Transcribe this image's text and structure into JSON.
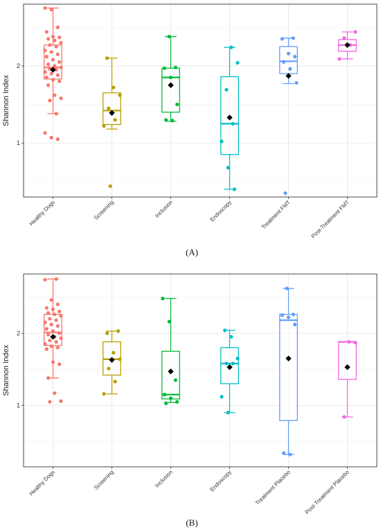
{
  "panels_labels": [
    "(A)",
    "(B)"
  ],
  "chart_data": [
    {
      "type": "box",
      "panel": "(A)",
      "ylabel": "Shannon Index",
      "xlabel": "",
      "title": "",
      "grid": true,
      "ylim": [
        0.3,
        2.8
      ],
      "yticks": [
        1,
        2
      ],
      "categories": [
        "Healthy Dogs",
        "Screening",
        "Inclusion",
        "Endoscopy",
        "Treatment FMT",
        "Post-Treatment FMT"
      ],
      "colors": [
        "#F8766D",
        "#B79F00",
        "#00BA38",
        "#00BFC4",
        "#619CFF",
        "#F564E3"
      ],
      "boxes": [
        {
          "min": 1.38,
          "q1": 1.83,
          "median": 1.98,
          "q3": 2.27,
          "max": 2.75,
          "mean": 1.95
        },
        {
          "min": 1.18,
          "q1": 1.24,
          "median": 1.42,
          "q3": 1.65,
          "max": 2.1,
          "mean": 1.39
        },
        {
          "min": 1.28,
          "q1": 1.4,
          "median": 1.85,
          "q3": 1.97,
          "max": 2.38,
          "mean": 1.75
        },
        {
          "min": 0.4,
          "q1": 0.85,
          "median": 1.25,
          "q3": 1.86,
          "max": 2.24,
          "mean": 1.33
        },
        {
          "min": 1.77,
          "q1": 1.9,
          "median": 2.06,
          "q3": 2.25,
          "max": 2.36,
          "mean": 1.87
        },
        {
          "min": 2.09,
          "q1": 2.19,
          "median": 2.27,
          "q3": 2.34,
          "max": 2.44,
          "mean": 2.27
        }
      ],
      "points": [
        [
          2.75,
          2.73,
          2.5,
          2.44,
          2.38,
          2.37,
          2.35,
          2.33,
          2.3,
          2.27,
          2.25,
          2.2,
          2.18,
          2.15,
          2.12,
          2.08,
          2.05,
          2.02,
          2.0,
          1.98,
          1.96,
          1.95,
          1.92,
          1.9,
          1.88,
          1.85,
          1.82,
          1.8,
          1.75,
          1.62,
          1.58,
          1.55,
          1.38,
          1.13,
          1.07,
          1.05
        ],
        [
          2.1,
          1.72,
          1.62,
          1.45,
          1.3,
          1.22,
          0.44
        ],
        [
          2.38,
          1.98,
          1.97,
          1.85,
          1.5,
          1.3,
          1.29
        ],
        [
          2.24,
          2.04,
          1.69,
          1.25,
          1.02,
          0.68,
          0.4
        ],
        [
          2.36,
          2.35,
          2.16,
          2.12,
          2.05,
          1.96,
          1.78,
          0.35
        ],
        [
          2.44,
          2.36,
          2.27,
          2.09
        ]
      ]
    },
    {
      "type": "box",
      "panel": "(B)",
      "ylabel": "Shannon Index",
      "xlabel": "",
      "title": "",
      "grid": true,
      "ylim": [
        0.15,
        2.82
      ],
      "yticks": [
        1,
        2
      ],
      "categories": [
        "Healthy Dogs",
        "Screening",
        "Inclusion",
        "Endoscopy",
        "Treatment Placebo",
        "Post-Treatment Placebo"
      ],
      "colors": [
        "#F8766D",
        "#B79F00",
        "#00BA38",
        "#00BFC4",
        "#619CFF",
        "#F564E3"
      ],
      "boxes": [
        {
          "min": 1.38,
          "q1": 1.83,
          "median": 2.01,
          "q3": 2.26,
          "max": 2.75,
          "mean": 1.95
        },
        {
          "min": 1.16,
          "q1": 1.42,
          "median": 1.64,
          "q3": 1.88,
          "max": 2.03,
          "mean": 1.63
        },
        {
          "min": 1.04,
          "q1": 1.09,
          "median": 1.15,
          "q3": 1.75,
          "max": 2.48,
          "mean": 1.47
        },
        {
          "min": 0.9,
          "q1": 1.3,
          "median": 1.58,
          "q3": 1.8,
          "max": 2.04,
          "mean": 1.53
        },
        {
          "min": 0.32,
          "q1": 0.79,
          "median": 2.18,
          "q3": 2.26,
          "max": 2.62,
          "mean": 1.65
        },
        {
          "min": 0.84,
          "q1": 1.36,
          "median": 1.88,
          "q3": 1.88,
          "max": 1.88,
          "mean": 1.53
        }
      ],
      "points": [
        [
          2.75,
          2.74,
          2.46,
          2.4,
          2.35,
          2.33,
          2.3,
          2.28,
          2.26,
          2.24,
          2.2,
          2.18,
          2.15,
          2.12,
          2.1,
          2.06,
          2.03,
          2.0,
          1.98,
          1.95,
          1.93,
          1.9,
          1.88,
          1.85,
          1.82,
          1.8,
          1.78,
          1.6,
          1.57,
          1.38,
          1.17,
          1.06,
          1.05
        ],
        [
          2.03,
          2.0,
          1.73,
          1.64,
          1.51,
          1.33,
          1.16
        ],
        [
          2.48,
          2.16,
          1.35,
          1.15,
          1.1,
          1.05,
          1.03
        ],
        [
          2.04,
          1.95,
          1.65,
          1.58,
          1.58,
          1.12,
          0.9
        ],
        [
          2.62,
          2.26,
          2.25,
          2.22,
          2.12,
          0.34,
          0.32
        ],
        [
          1.88,
          1.87,
          0.84
        ]
      ]
    }
  ]
}
